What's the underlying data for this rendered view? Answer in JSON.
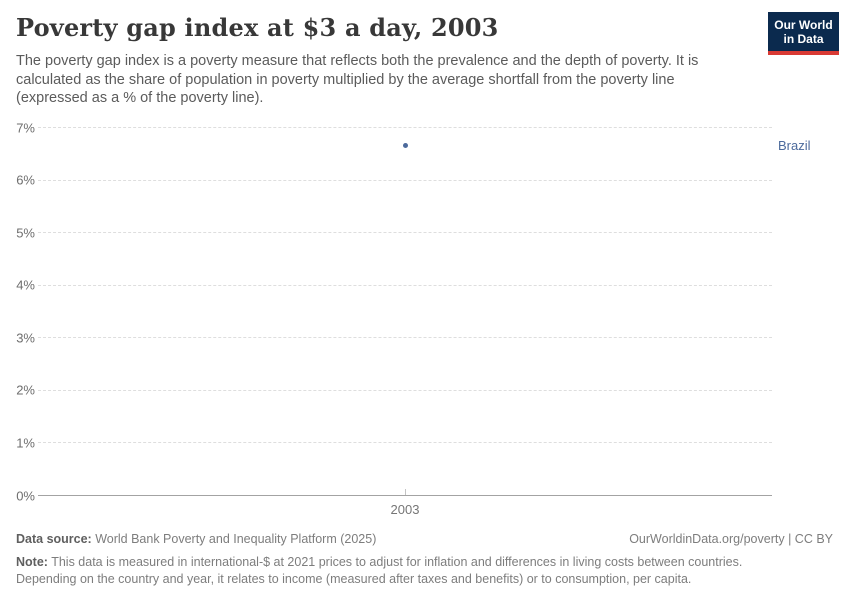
{
  "header": {
    "title": "Poverty gap index at $3 a day, 2003",
    "subtitle": "The poverty gap index is a poverty measure that reflects both the prevalence and the depth of poverty. It is calculated as the share of population in poverty multiplied by the average shortfall from the poverty line (expressed as a % of the poverty line).",
    "logo": {
      "line1": "Our World",
      "line2": "in Data",
      "bg_color": "#0b2a4e",
      "stripe_color": "#d93a34"
    }
  },
  "chart_data": {
    "type": "scatter",
    "title": "Poverty gap index at $3 a day, 2003",
    "x": [
      2003
    ],
    "xticks": [
      "2003"
    ],
    "series": [
      {
        "name": "Brazil",
        "values": [
          6.64
        ],
        "color": "#4c6a9c"
      }
    ],
    "xlabel": "",
    "ylabel": "",
    "ylim": [
      0,
      7
    ],
    "yticks": [
      0,
      1,
      2,
      3,
      4,
      5,
      6,
      7
    ],
    "ytick_suffix": "%",
    "grid": "horizontal-dashed",
    "legend_position": "right-of-point"
  },
  "footer": {
    "data_source_label": "Data source:",
    "data_source_value": " World Bank Poverty and Inequality Platform (2025)",
    "attribution": "OurWorldinData.org/poverty | CC BY",
    "note_label": "Note:",
    "note_value": " This data is measured in international-$ at 2021 prices to adjust for inflation and differences in living costs between countries. Depending on the country and year, it relates to income (measured after taxes and benefits) or to consumption, per capita."
  }
}
